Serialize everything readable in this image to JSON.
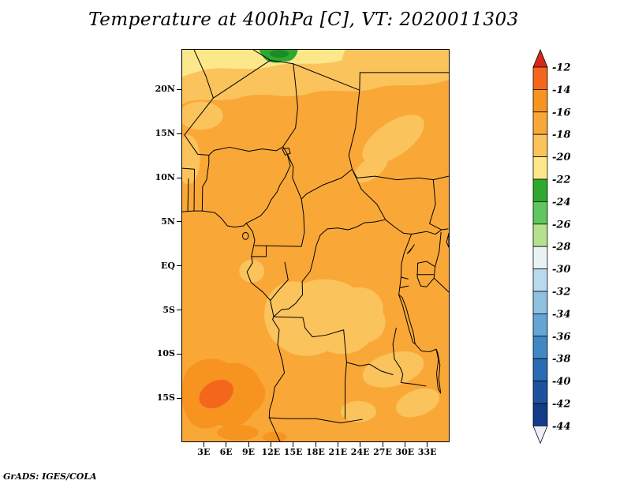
{
  "title": "Temperature at 400hPa [C], VT: 2020011303",
  "footer": "GrADS: IGES/COLA",
  "axes": {
    "y_ticks": [
      {
        "label": "20N",
        "lat": 20
      },
      {
        "label": "15N",
        "lat": 15
      },
      {
        "label": "10N",
        "lat": 10
      },
      {
        "label": "5N",
        "lat": 5
      },
      {
        "label": "EQ",
        "lat": 0
      },
      {
        "label": "5S",
        "lat": -5
      },
      {
        "label": "10S",
        "lat": -10
      },
      {
        "label": "15S",
        "lat": -15
      }
    ],
    "x_ticks": [
      {
        "label": "3E",
        "lon": 3
      },
      {
        "label": "6E",
        "lon": 6
      },
      {
        "label": "9E",
        "lon": 9
      },
      {
        "label": "12E",
        "lon": 12
      },
      {
        "label": "15E",
        "lon": 15
      },
      {
        "label": "18E",
        "lon": 18
      },
      {
        "label": "21E",
        "lon": 21
      },
      {
        "label": "24E",
        "lon": 24
      },
      {
        "label": "27E",
        "lon": 27
      },
      {
        "label": "30E",
        "lon": 30
      },
      {
        "label": "33E",
        "lon": 33
      }
    ]
  },
  "colorbar": {
    "labels": [
      -12,
      -14,
      -16,
      -18,
      -20,
      -22,
      -24,
      -26,
      -28,
      -30,
      -32,
      -34,
      -36,
      -38,
      -40,
      -42,
      -44
    ],
    "top_triangle_color": "#d8281c",
    "bottom_triangle_color": "#eceef8",
    "segment_colors": [
      "#f4661c",
      "#f7941f",
      "#f9a838",
      "#fbc35c",
      "#fce88a",
      "#2fa82f",
      "#5fc75f",
      "#b5e08e",
      "#e9f3f3",
      "#b9d9ee",
      "#8fc0e0",
      "#64a5d5",
      "#3f88c5",
      "#2a6cb4",
      "#1d529e",
      "#123c87"
    ]
  },
  "map_palette": {
    "base": "#f9a838",
    "light": "#fbc35c",
    "pale": "#fce88a",
    "green": "#2fa82f",
    "green_core": "#1d8c26",
    "warm": "#f7941f",
    "warm_core": "#f4661c"
  },
  "chart_data": {
    "type": "heatmap",
    "title": "Temperature at 400hPa [C], VT: 2020011303",
    "variable": "Temperature",
    "level": "400hPa",
    "units": "C",
    "valid_time_label": "VT: 2020011303",
    "lon_ticks": [
      "3E",
      "6E",
      "9E",
      "12E",
      "15E",
      "18E",
      "21E",
      "24E",
      "27E",
      "30E",
      "33E"
    ],
    "lat_ticks": [
      "20N",
      "15N",
      "10N",
      "5N",
      "EQ",
      "5S",
      "10S",
      "15S"
    ],
    "lon_range_deg": [
      0,
      36
    ],
    "lat_range_deg": [
      -20,
      24.6
    ],
    "shade_interval": 2,
    "colorbar_levels": [
      -12,
      -14,
      -16,
      -18,
      -20,
      -22,
      -24,
      -26,
      -28,
      -30,
      -32,
      -34,
      -36,
      -38,
      -40,
      -42,
      -44
    ],
    "field_regions": [
      {
        "value_c": -17,
        "where": "dominant background shade over most of the domain"
      },
      {
        "value_c": -19,
        "where": "band north of ~19N; patch over Sudan 25E-32E 11N-16N; Congo basin 11E-27E 2S-10S; southeast 24E-34E 10S-16S; small coastal Gabon patch near 9E 0S; left-edge streak near 0E-2E 9N-15N"
      },
      {
        "value_c": -21,
        "where": "pale yellow band along the northern edge 22N-24.5N west of ~22E"
      },
      {
        "value_c": -23,
        "where": "green patch at top edge near 10E-15E north of 23.5N"
      },
      {
        "value_c": -25,
        "where": "small darker core inside the green patch at the top edge"
      },
      {
        "value_c": -15,
        "where": "warm orange blob over the SE Atlantic 0E-11E 11S-18S and bottom-edge spots 6E-13E"
      },
      {
        "value_c": -13,
        "where": "warm core near 3E-7E 13S-16S"
      }
    ],
    "legend_position": "right",
    "grid": false
  }
}
